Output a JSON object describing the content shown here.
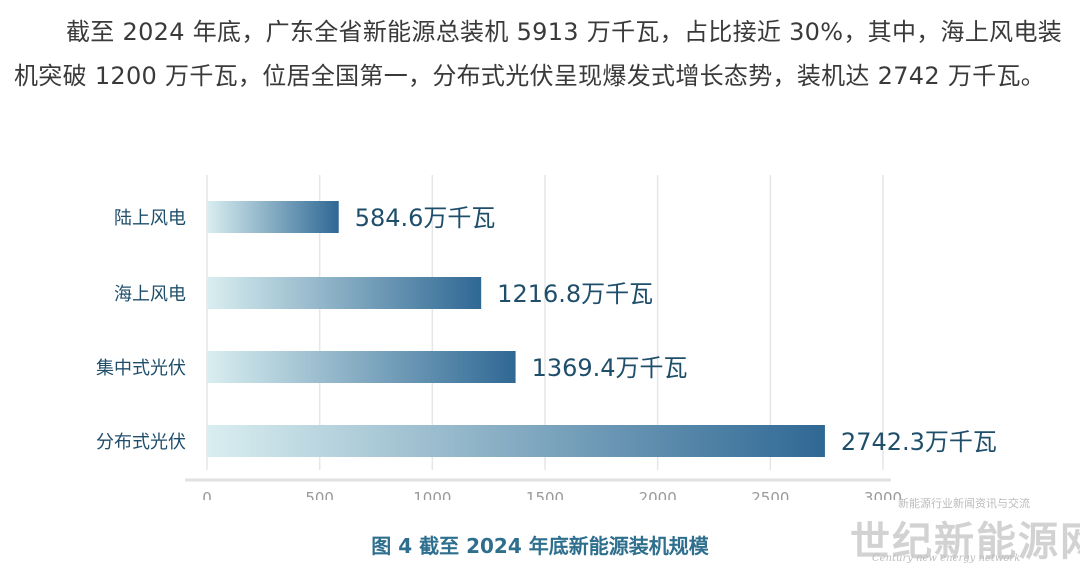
{
  "paragraph": "截至 2024 年底，广东全省新能源总装机 5913 万千瓦，占比接近 30%，其中，海上风电装机突破 1200 万千瓦，位居全国第一，分布式光伏呈现爆发式增长态势，装机达 2742 万千瓦。",
  "caption": "图 4  截至 2024 年底新能源装机规模",
  "watermark": {
    "small": "新能源行业新闻资讯与交流",
    "big": "世纪新能源网",
    "english": "Century new energy network"
  },
  "chart_data": {
    "type": "bar",
    "orientation": "horizontal",
    "categories": [
      "陆上风电",
      "海上风电",
      "集中式光伏",
      "分布式光伏"
    ],
    "values": [
      584.6,
      1216.8,
      1369.4,
      2742.3
    ],
    "value_labels": [
      "584.6万千瓦",
      "1216.8万千瓦",
      "1369.4万千瓦",
      "2742.3万千瓦"
    ],
    "x_ticks": [
      "0",
      "500",
      "1000",
      "1500",
      "2000",
      "2500",
      "3000"
    ],
    "xlim": [
      0,
      3000
    ],
    "grid": true,
    "bar_gradient": [
      "#d9eef0",
      "#2f6894"
    ]
  }
}
